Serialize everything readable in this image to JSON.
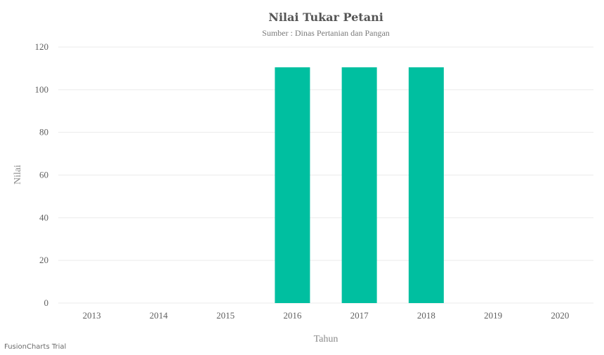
{
  "chart_data": {
    "type": "bar",
    "title": "Nilai Tukar Petani",
    "subtitle": "Sumber : Dinas Pertanian dan Pangan",
    "xlabel": "Tahun",
    "ylabel": "Nilai",
    "categories": [
      "2013",
      "2014",
      "2015",
      "2016",
      "2017",
      "2018",
      "2019",
      "2020"
    ],
    "values": [
      0,
      0,
      0,
      110.5,
      110.5,
      110.5,
      0,
      0
    ],
    "ylim": [
      0,
      120
    ],
    "yticks": [
      0,
      20,
      40,
      60,
      80,
      100,
      120
    ],
    "grid": true,
    "bar_color": "#00bfa0",
    "grid_color": "#ebebeb"
  },
  "credit": "FusionCharts Trial"
}
